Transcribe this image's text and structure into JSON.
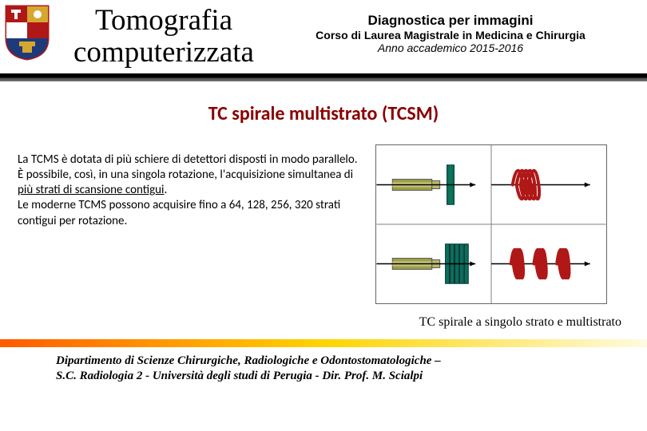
{
  "header": {
    "title_main_l1": "Tomografia",
    "title_main_l2": "computerizzata",
    "course_line1": "Diagnostica per immagini",
    "course_line2": "Corso di Laurea Magistrale in Medicina e Chirurgia",
    "course_line3": "Anno accademico 2015-2016"
  },
  "section": {
    "heading": "TC spirale multistrato (TCSM)"
  },
  "body": {
    "p1": "La TCMS è dotata di più schiere di detettori disposti in modo parallelo.",
    "p2a": "È possibile, così, in una singola rotazione, l'acquisizione simultanea di ",
    "p2u": "più strati di scansione contigui",
    "p2b": ".",
    "p3": "Le moderne TCMS possono acquisire fino a 64, 128, 256, 320 strati contigui per rotazione."
  },
  "figure": {
    "caption": "TC spirale a singolo strato e multistrato",
    "colors": {
      "tube": "#9e9e4d",
      "tube_mid": "#c6c679",
      "detector_single": "#0b6e5b",
      "detector_multi": "#0b6e5b",
      "coil": "#b01818",
      "axis": "#000000",
      "cell_border": "#808080",
      "background": "#ffffff"
    },
    "layout": {
      "rows": 2,
      "cols": 2
    },
    "axis_line_width": 1.5,
    "coil_turns_single": 5,
    "coil_turns_multi_groups": 3,
    "coil_turns_multi_per_group": 3,
    "detector_single_slots": 1,
    "detector_multi_slots": 5
  },
  "footer": {
    "l1": "Dipartimento di Scienze Chirurgiche, Radiologiche e Odontostomatologiche –",
    "l2": "S.C. Radiologia 2 - Università degli studi di Perugia - Dir. Prof. M. Scialpi"
  },
  "logo": {
    "shield_outer": "#b01818",
    "shield_gold": "#d6a72e",
    "shield_white": "#ffffff",
    "shield_blue": "#1e3a7b"
  },
  "bars": {
    "top_from": "#000000",
    "top_to": "#777777",
    "bottom_left": "#ff5a00",
    "bottom_mid": "#ffd400",
    "bottom_right": "#fffbe0"
  }
}
